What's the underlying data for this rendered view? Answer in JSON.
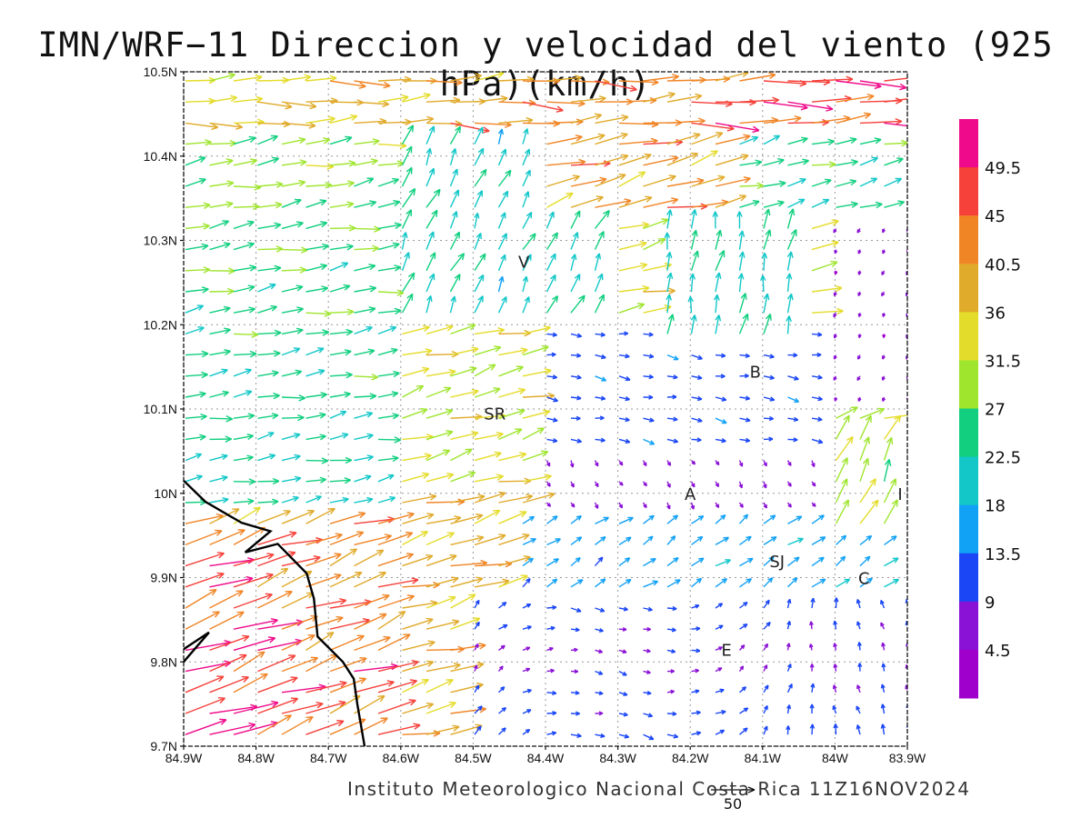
{
  "title": "IMN/WRF−11 Direccion y velocidad del viento (925 hPa)(km/h)",
  "footer": "Instituto Meteorologico Nacional Costa Rica 11Z16NOV2024",
  "reference_vector": "50",
  "axes": {
    "lat_labels": [
      "10.5N",
      "10.4N",
      "10.3N",
      "10.2N",
      "10.1N",
      "10N",
      "9.9N",
      "9.8N",
      "9.7N"
    ],
    "lon_labels": [
      "84.9W",
      "84.8W",
      "84.7W",
      "84.6W",
      "84.5W",
      "84.4W",
      "84.3W",
      "84.2W",
      "84.1W",
      "84W",
      "83.9W"
    ],
    "lat_range": [
      9.7,
      10.5
    ],
    "lon_range": [
      -84.9,
      -83.9
    ],
    "grid": true
  },
  "places": [
    {
      "label": "V",
      "lon": -84.43,
      "lat": 10.275
    },
    {
      "label": "B",
      "lon": -84.11,
      "lat": 10.145
    },
    {
      "label": "SR",
      "lon": -84.47,
      "lat": 10.095
    },
    {
      "label": "A",
      "lon": -84.2,
      "lat": 10.0
    },
    {
      "label": "I",
      "lon": -83.91,
      "lat": 10.0
    },
    {
      "label": "SJ",
      "lon": -84.08,
      "lat": 9.92
    },
    {
      "label": "C",
      "lon": -83.96,
      "lat": 9.9
    },
    {
      "label": "E",
      "lon": -84.15,
      "lat": 9.815
    }
  ],
  "colorbar": {
    "labels": [
      "49.5",
      "45",
      "40.5",
      "36",
      "31.5",
      "27",
      "22.5",
      "18",
      "13.5",
      "9",
      "4.5"
    ],
    "colors": [
      "#ee0a8a",
      "#f5413a",
      "#f08526",
      "#e0aa2a",
      "#e4dc2a",
      "#9fe52e",
      "#11cf7f",
      "#13c7c8",
      "#11a1f5",
      "#1a46f5",
      "#8a11d6",
      "#a000cc"
    ]
  },
  "chart_data": {
    "type": "wind-vector-map",
    "title": "IMN/WRF−11 Direccion y velocidad del viento (925 hPa)(km/h)",
    "units": "km/h",
    "level": "925 hPa",
    "valid": "11Z16NOV2024",
    "color_levels": [
      4.5,
      9,
      13.5,
      18,
      22.5,
      27,
      31.5,
      36,
      40.5,
      45,
      49.5
    ],
    "coast": [
      [
        -84.9,
        10.015
      ],
      [
        -84.87,
        9.99
      ],
      [
        -84.82,
        9.965
      ],
      [
        -84.78,
        9.955
      ],
      [
        -84.815,
        9.93
      ],
      [
        -84.77,
        9.94
      ],
      [
        -84.73,
        9.905
      ],
      [
        -84.72,
        9.875
      ],
      [
        -84.715,
        9.83
      ],
      [
        -84.68,
        9.8
      ],
      [
        -84.665,
        9.78
      ],
      [
        -84.66,
        9.75
      ],
      [
        -84.65,
        9.7
      ]
    ],
    "coast_nw": [
      [
        -84.9,
        9.8
      ],
      [
        -84.865,
        9.835
      ],
      [
        -84.9,
        9.815
      ]
    ],
    "sample_vectors": [
      {
        "lon": -84.9,
        "lat": 10.48,
        "speed": 31,
        "dir_deg": 80
      },
      {
        "lon": -84.2,
        "lat": 10.48,
        "speed": 47,
        "dir_deg": 92
      },
      {
        "lon": -84.2,
        "lat": 10.2,
        "speed": 14,
        "dir_deg": 85
      },
      {
        "lon": -84.1,
        "lat": 10.05,
        "speed": 6,
        "dir_deg": 260
      },
      {
        "lon": -84.85,
        "lat": 9.75,
        "speed": 47,
        "dir_deg": 75
      },
      {
        "lon": -84.0,
        "lat": 9.8,
        "speed": 18,
        "dir_deg": 70
      }
    ]
  }
}
